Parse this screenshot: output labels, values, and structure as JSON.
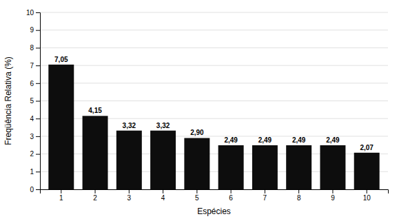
{
  "chart_data": {
    "type": "bar",
    "categories": [
      "1",
      "2",
      "3",
      "4",
      "5",
      "6",
      "7",
      "8",
      "9",
      "10"
    ],
    "values": [
      7.05,
      4.15,
      3.32,
      3.32,
      2.9,
      2.49,
      2.49,
      2.49,
      2.49,
      2.07
    ],
    "value_labels": [
      "7,05",
      "4,15",
      "3,32",
      "3,32",
      "2,90",
      "2,49",
      "2,49",
      "2,49",
      "2,49",
      "2,07"
    ],
    "data_labels": true,
    "color": "#0d0d0d",
    "xlabel": "Espécies",
    "ylabel": "Freqüência Relativa (%)",
    "ylim": [
      0,
      10
    ],
    "yticks": [
      0,
      1,
      2,
      3,
      4,
      5,
      6,
      7,
      8,
      9,
      10
    ],
    "grid": true
  }
}
